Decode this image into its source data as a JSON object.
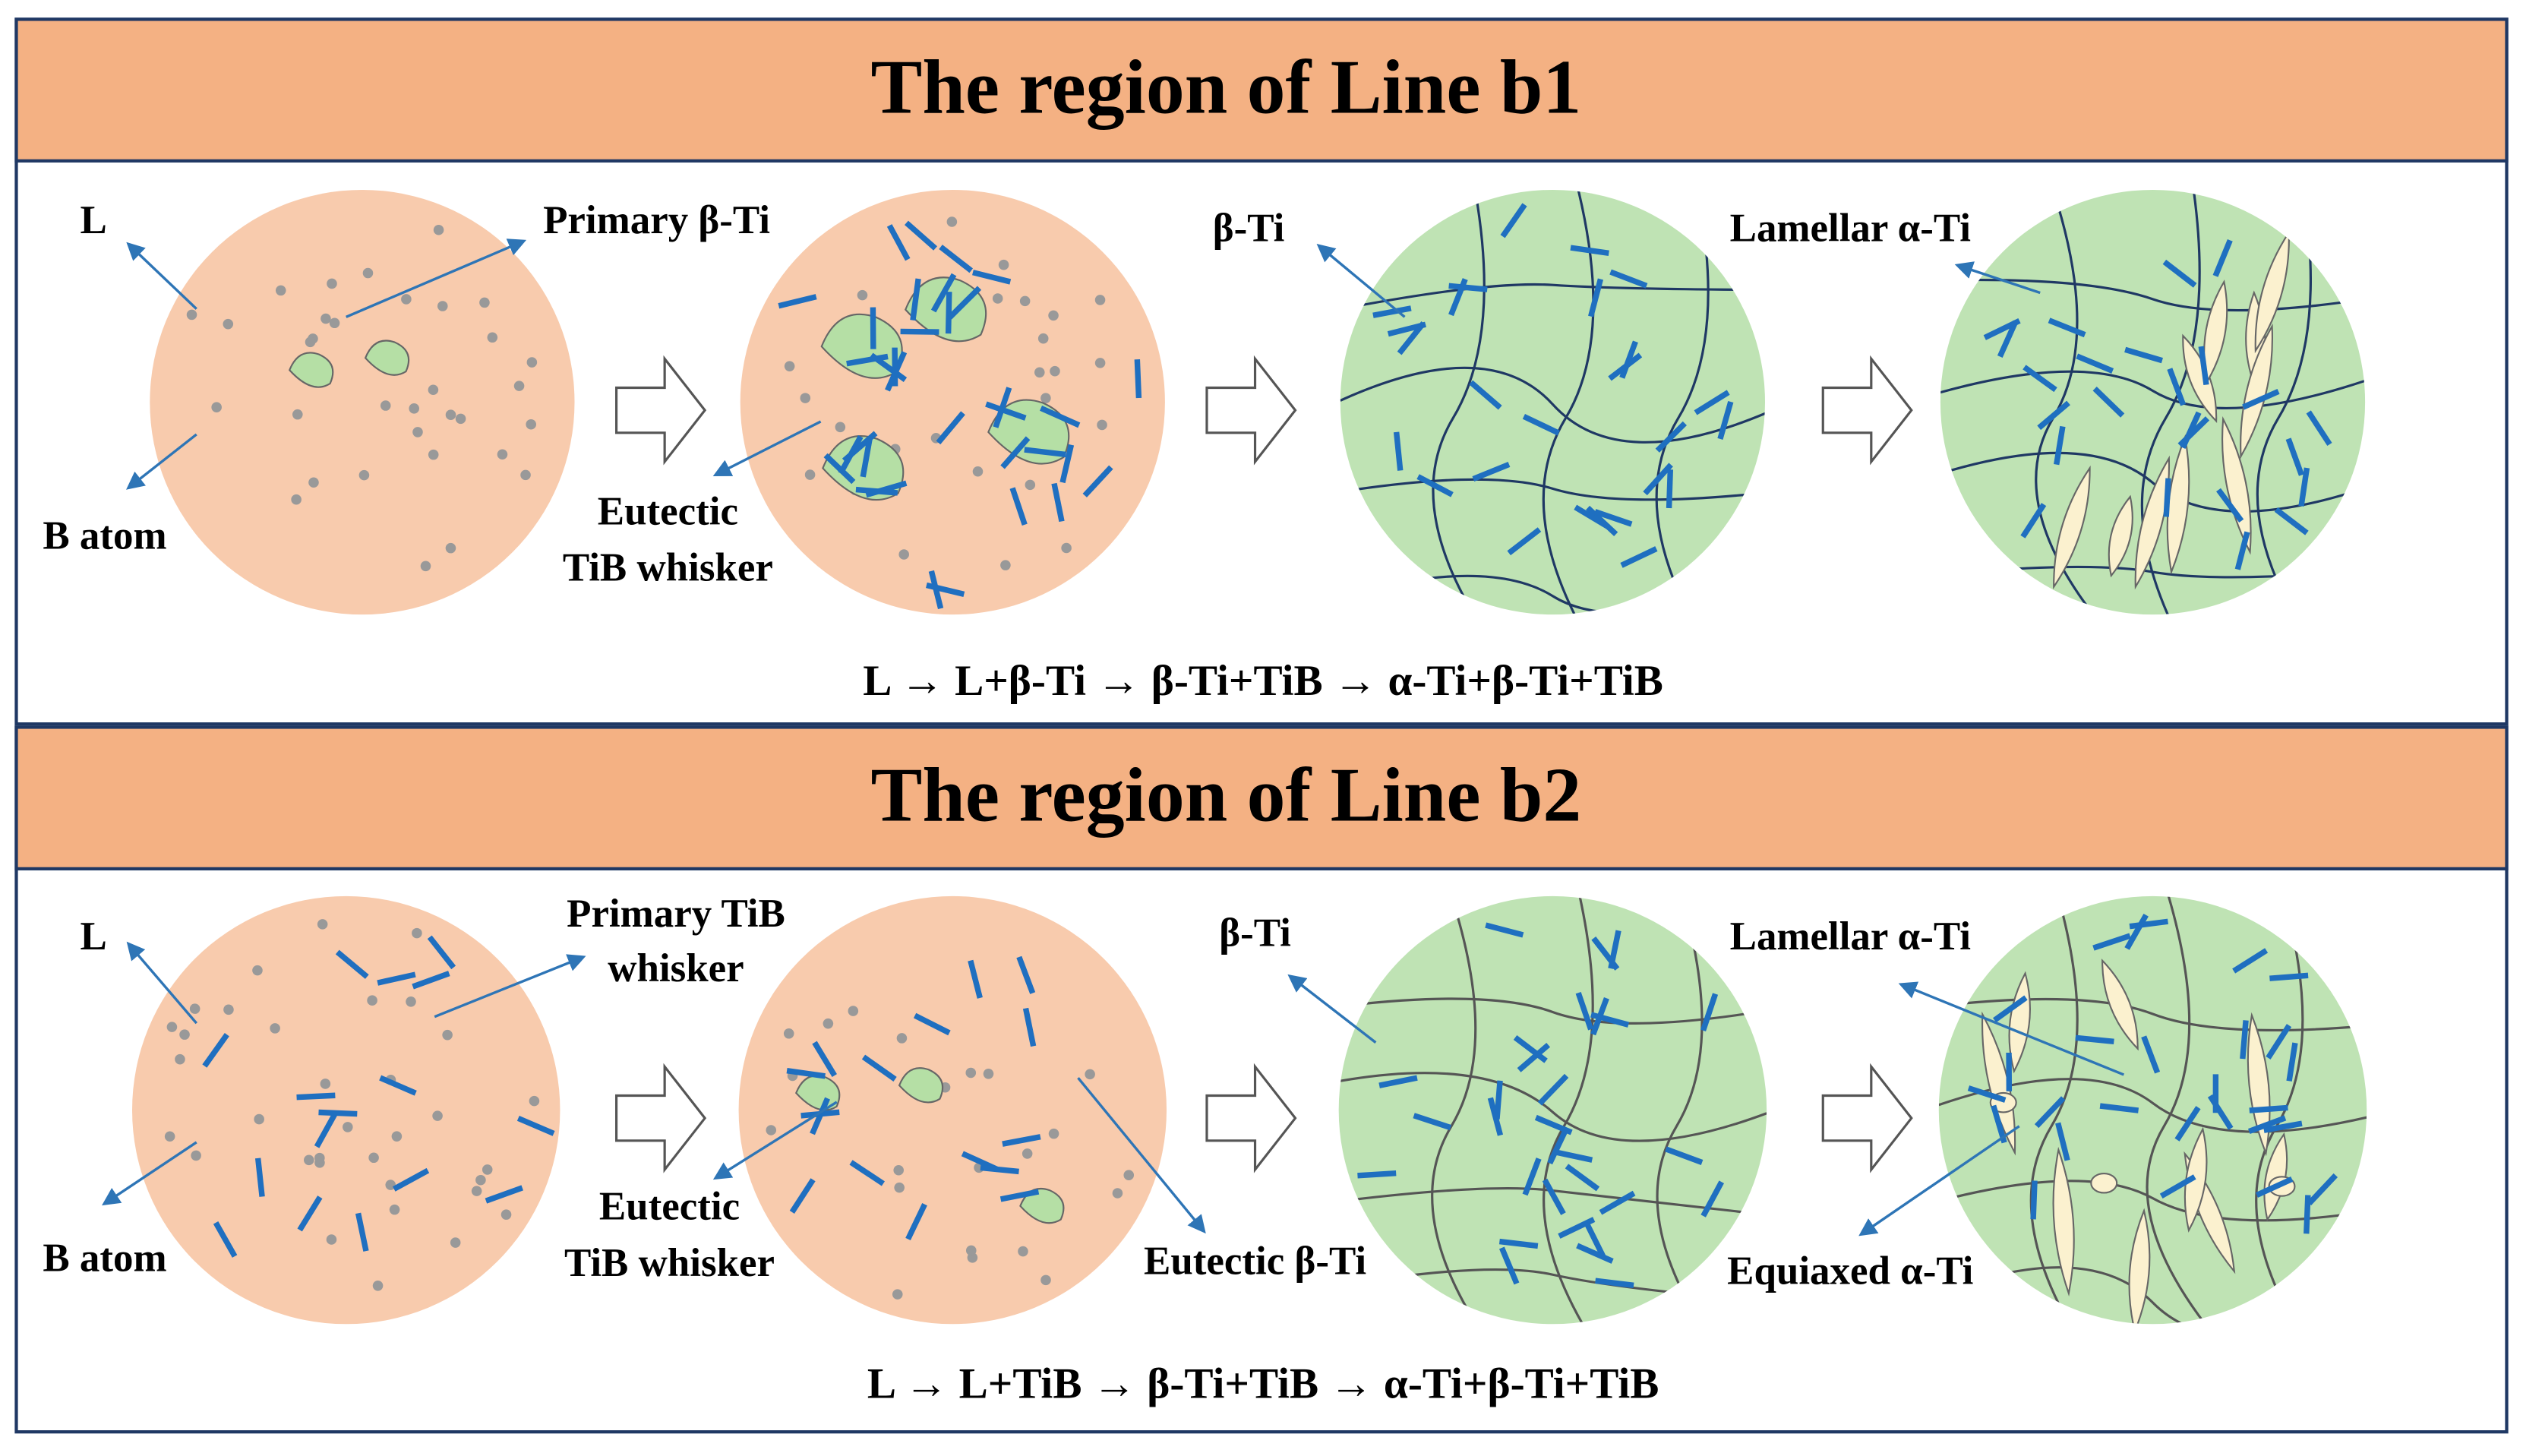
{
  "panels": [
    {
      "title": "The region of Line b1",
      "labels": [
        "L",
        "Primary β-Ti",
        "B atom",
        "Eutectic",
        "TiB whisker",
        "β-Ti",
        "Lamellar α-Ti"
      ],
      "equation": "L → L+β-Ti → β-Ti+TiB → α-Ti+β-Ti+TiB"
    },
    {
      "title": "The region of Line b2",
      "labels": [
        "L",
        "Primary TiB",
        "whisker",
        "B atom",
        "Eutectic",
        "TiB whisker",
        "Eutectic β-Ti",
        "β-Ti",
        "Lamellar α-Ti",
        "Equiaxed α-Ti"
      ],
      "equation": "L → L+TiB → β-Ti+TiB → α-Ti+β-Ti+TiB"
    }
  ]
}
